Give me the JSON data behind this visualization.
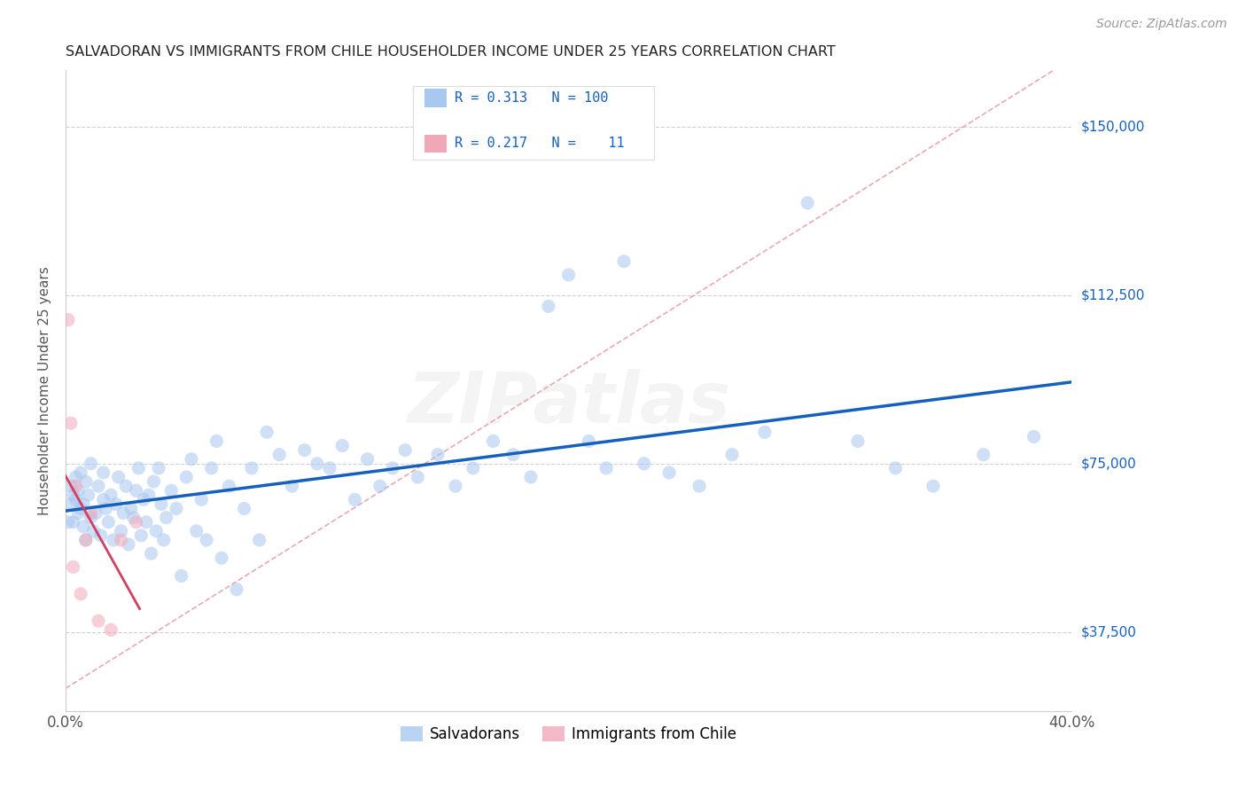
{
  "title": "SALVADORAN VS IMMIGRANTS FROM CHILE HOUSEHOLDER INCOME UNDER 25 YEARS CORRELATION CHART",
  "source": "Source: ZipAtlas.com",
  "ylabel": "Householder Income Under 25 years",
  "xlim": [
    0.0,
    0.4
  ],
  "ylim": [
    20000,
    162500
  ],
  "xticks": [
    0.0,
    0.05,
    0.1,
    0.15,
    0.2,
    0.25,
    0.3,
    0.35,
    0.4
  ],
  "xticklabels": [
    "0.0%",
    "",
    "",
    "",
    "",
    "",
    "",
    "",
    "40.0%"
  ],
  "ytick_positions": [
    37500,
    75000,
    112500,
    150000
  ],
  "ytick_labels": [
    "$37,500",
    "$75,000",
    "$112,500",
    "$150,000"
  ],
  "r_salvadoran": "0.313",
  "n_salvadoran": "100",
  "r_chile": "0.217",
  "n_chile": "11",
  "color_salvadoran": "#a8c8f0",
  "color_chile": "#f0a8b8",
  "line_color_salvadoran": "#1560bd",
  "line_color_chile": "#d04060",
  "diag_color": "#e8a0a8",
  "watermark": "ZIPatlas",
  "background_color": "#ffffff",
  "scatter_alpha": 0.55,
  "scatter_size": 120,
  "salvadoran_x": [
    0.001,
    0.002,
    0.002,
    0.003,
    0.003,
    0.004,
    0.004,
    0.005,
    0.005,
    0.006,
    0.006,
    0.007,
    0.007,
    0.008,
    0.008,
    0.009,
    0.01,
    0.01,
    0.011,
    0.012,
    0.013,
    0.014,
    0.015,
    0.015,
    0.016,
    0.017,
    0.018,
    0.019,
    0.02,
    0.021,
    0.022,
    0.023,
    0.024,
    0.025,
    0.026,
    0.027,
    0.028,
    0.029,
    0.03,
    0.031,
    0.032,
    0.033,
    0.034,
    0.035,
    0.036,
    0.037,
    0.038,
    0.039,
    0.04,
    0.042,
    0.044,
    0.046,
    0.048,
    0.05,
    0.052,
    0.054,
    0.056,
    0.058,
    0.06,
    0.062,
    0.065,
    0.068,
    0.071,
    0.074,
    0.077,
    0.08,
    0.085,
    0.09,
    0.095,
    0.1,
    0.105,
    0.11,
    0.115,
    0.12,
    0.125,
    0.13,
    0.135,
    0.14,
    0.148,
    0.155,
    0.162,
    0.17,
    0.178,
    0.185,
    0.192,
    0.2,
    0.208,
    0.215,
    0.222,
    0.23,
    0.24,
    0.252,
    0.265,
    0.278,
    0.295,
    0.315,
    0.33,
    0.345,
    0.365,
    0.385
  ],
  "salvadoran_y": [
    62000,
    66000,
    70000,
    68000,
    62000,
    67000,
    72000,
    64000,
    69000,
    65000,
    73000,
    61000,
    66000,
    71000,
    58000,
    68000,
    63000,
    75000,
    60000,
    64000,
    70000,
    59000,
    67000,
    73000,
    65000,
    62000,
    68000,
    58000,
    66000,
    72000,
    60000,
    64000,
    70000,
    57000,
    65000,
    63000,
    69000,
    74000,
    59000,
    67000,
    62000,
    68000,
    55000,
    71000,
    60000,
    74000,
    66000,
    58000,
    63000,
    69000,
    65000,
    50000,
    72000,
    76000,
    60000,
    67000,
    58000,
    74000,
    80000,
    54000,
    70000,
    47000,
    65000,
    74000,
    58000,
    82000,
    77000,
    70000,
    78000,
    75000,
    74000,
    79000,
    67000,
    76000,
    70000,
    74000,
    78000,
    72000,
    77000,
    70000,
    74000,
    80000,
    77000,
    72000,
    110000,
    117000,
    80000,
    74000,
    120000,
    75000,
    73000,
    70000,
    77000,
    82000,
    133000,
    80000,
    74000,
    70000,
    77000,
    81000
  ],
  "chile_x": [
    0.001,
    0.002,
    0.003,
    0.004,
    0.006,
    0.008,
    0.01,
    0.013,
    0.018,
    0.022,
    0.028
  ],
  "chile_y": [
    107000,
    84000,
    52000,
    70000,
    46000,
    58000,
    64000,
    40000,
    38000,
    58000,
    62000
  ]
}
